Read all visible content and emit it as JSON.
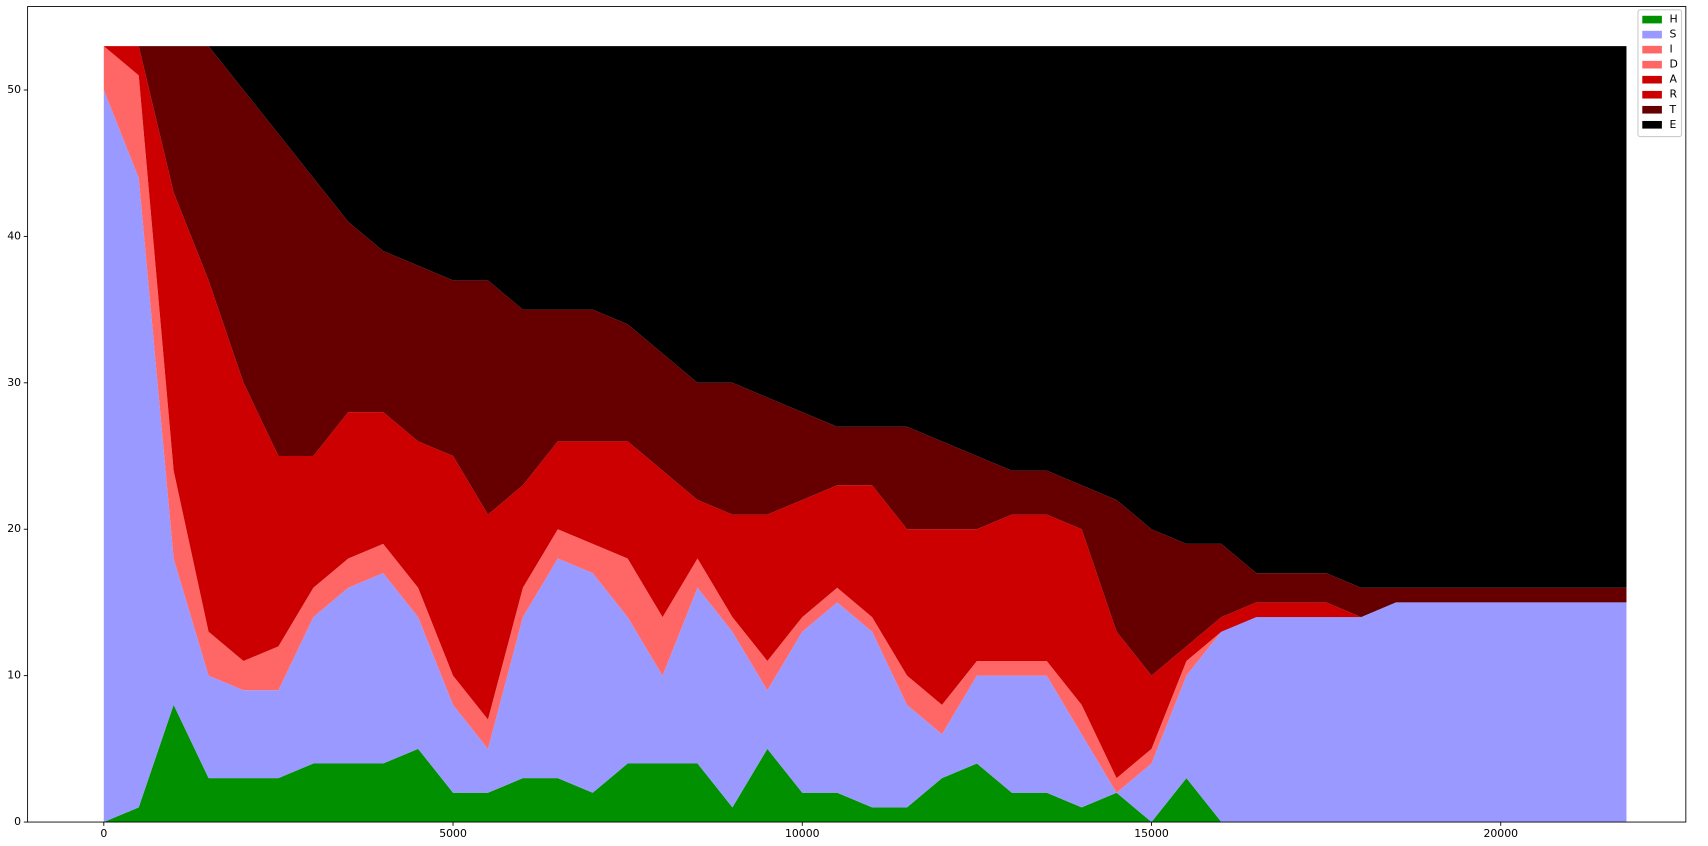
{
  "chart_data": {
    "type": "stacked-area",
    "x": [
      0,
      500,
      1000,
      1500,
      2000,
      2500,
      3000,
      3500,
      4000,
      4500,
      5000,
      5500,
      6000,
      6500,
      7000,
      7500,
      8000,
      8500,
      9000,
      9500,
      10000,
      10500,
      11000,
      11500,
      12000,
      12500,
      13000,
      13500,
      14000,
      14500,
      15000,
      15500,
      16000,
      16500,
      17000,
      17500,
      18000,
      18500,
      19000,
      19500,
      20000,
      20500,
      21000,
      21500,
      21800
    ],
    "series": [
      {
        "name": "H",
        "color": "#009000",
        "values": [
          0,
          1,
          8,
          3,
          3,
          3,
          4,
          4,
          4,
          5,
          2,
          2,
          3,
          3,
          2,
          4,
          4,
          4,
          1,
          5,
          2,
          2,
          1,
          1,
          3,
          4,
          2,
          2,
          1,
          2,
          0,
          3,
          0,
          0,
          0,
          0,
          0,
          0,
          0,
          0,
          0,
          0,
          0,
          0,
          0
        ]
      },
      {
        "name": "S",
        "color": "#9999ff",
        "values": [
          50,
          43,
          10,
          7,
          6,
          6,
          10,
          12,
          13,
          9,
          6,
          3,
          11,
          15,
          15,
          10,
          6,
          12,
          12,
          4,
          11,
          13,
          12,
          7,
          3,
          6,
          8,
          8,
          5,
          0,
          4,
          7,
          13,
          14,
          14,
          14,
          14,
          15,
          15,
          15,
          15,
          15,
          15,
          15,
          15
        ]
      },
      {
        "name": "I",
        "color": "#ff6666",
        "values": [
          3,
          7,
          6,
          3,
          2,
          3,
          2,
          2,
          2,
          2,
          2,
          2,
          2,
          2,
          2,
          4,
          4,
          2,
          1,
          2,
          1,
          1,
          1,
          2,
          2,
          1,
          1,
          1,
          2,
          1,
          1,
          1,
          0,
          0,
          0,
          0,
          0,
          0,
          0,
          0,
          0,
          0,
          0,
          0,
          0
        ]
      },
      {
        "name": "D",
        "color": "#ff6666",
        "values": [
          0,
          0,
          0,
          0,
          0,
          0,
          0,
          0,
          0,
          0,
          0,
          0,
          0,
          0,
          0,
          0,
          0,
          0,
          0,
          0,
          0,
          0,
          0,
          0,
          0,
          0,
          0,
          0,
          0,
          0,
          0,
          0,
          0,
          0,
          0,
          0,
          0,
          0,
          0,
          0,
          0,
          0,
          0,
          0,
          0
        ]
      },
      {
        "name": "A",
        "color": "#cc0000",
        "values": [
          0,
          2,
          19,
          24,
          19,
          13,
          9,
          10,
          9,
          10,
          15,
          14,
          7,
          6,
          7,
          8,
          10,
          4,
          7,
          10,
          8,
          7,
          9,
          10,
          12,
          9,
          10,
          10,
          12,
          10,
          5,
          1,
          1,
          1,
          1,
          1,
          0,
          0,
          0,
          0,
          0,
          0,
          0,
          0,
          0
        ]
      },
      {
        "name": "R",
        "color": "#cc0000",
        "values": [
          0,
          0,
          0,
          0,
          0,
          0,
          0,
          0,
          0,
          0,
          0,
          0,
          0,
          0,
          0,
          0,
          0,
          0,
          0,
          0,
          0,
          0,
          0,
          0,
          0,
          0,
          0,
          0,
          0,
          0,
          0,
          0,
          0,
          0,
          0,
          0,
          0,
          0,
          0,
          0,
          0,
          0,
          0,
          0,
          0
        ]
      },
      {
        "name": "T",
        "color": "#660000",
        "values": [
          0,
          0,
          10,
          16,
          20,
          22,
          19,
          13,
          11,
          12,
          12,
          16,
          12,
          9,
          9,
          8,
          8,
          8,
          9,
          8,
          6,
          4,
          4,
          7,
          6,
          5,
          3,
          3,
          3,
          9,
          10,
          7,
          5,
          2,
          2,
          2,
          2,
          1,
          1,
          1,
          1,
          1,
          1,
          1,
          1
        ]
      },
      {
        "name": "E",
        "color": "#000000",
        "values": [
          0,
          0,
          0,
          0,
          3,
          6,
          9,
          12,
          14,
          15,
          16,
          16,
          18,
          18,
          18,
          19,
          21,
          23,
          23,
          24,
          25,
          26,
          26,
          26,
          27,
          28,
          29,
          29,
          30,
          31,
          33,
          34,
          34,
          36,
          36,
          36,
          37,
          37,
          37,
          37,
          37,
          37,
          37,
          37,
          37
        ]
      }
    ],
    "xlim": [
      -1091,
      22650
    ],
    "ylim": [
      0,
      55.7
    ],
    "xticks": [
      0,
      5000,
      10000,
      15000,
      20000
    ],
    "yticks": [
      0,
      10,
      20,
      30,
      40,
      50
    ],
    "legend": "upper right"
  }
}
